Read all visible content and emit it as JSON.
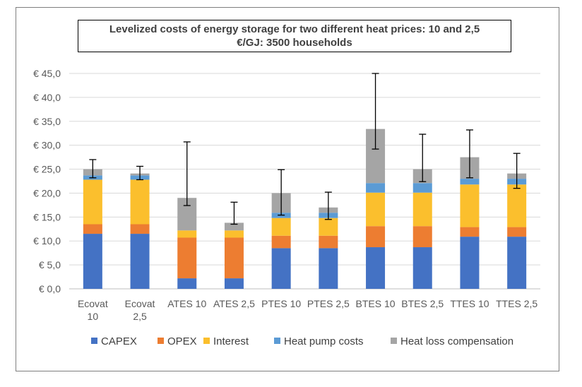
{
  "chart_data": {
    "type": "bar",
    "stacked": true,
    "title_line1": "Levelized costs of energy storage for two different heat prices: 10 and 2,5",
    "title_line2": "€/GJ: 3500 households",
    "categories": [
      [
        "Ecovat",
        "10"
      ],
      [
        "Ecovat",
        "2,5"
      ],
      [
        "ATES 10"
      ],
      [
        "ATES 2,5"
      ],
      [
        "PTES 10"
      ],
      [
        "PTES 2,5"
      ],
      [
        "BTES 10"
      ],
      [
        "BTES 2,5"
      ],
      [
        "TTES 10"
      ],
      [
        "TTES 2,5"
      ]
    ],
    "yticks": [
      "€ 0,0",
      "€ 5,0",
      "€ 10,0",
      "€ 15,0",
      "€ 20,0",
      "€ 25,0",
      "€ 30,0",
      "€ 35,0",
      "€ 40,0",
      "€ 45,0"
    ],
    "ylim": [
      0,
      45
    ],
    "grid": true,
    "legend_position": "bottom",
    "series": [
      {
        "name": "CAPEX",
        "color": "#4472c4",
        "values": [
          11.5,
          11.5,
          2.2,
          2.2,
          8.5,
          8.5,
          8.7,
          8.7,
          10.9,
          10.9
        ]
      },
      {
        "name": "OPEX",
        "color": "#ed7d31",
        "values": [
          2.0,
          2.0,
          8.5,
          8.5,
          2.6,
          2.6,
          4.4,
          4.4,
          2.0,
          2.0
        ]
      },
      {
        "name": "Interest",
        "color": "#fbbf2d",
        "values": [
          9.3,
          9.3,
          1.5,
          1.5,
          3.7,
          3.7,
          7.0,
          7.0,
          8.9,
          8.9
        ]
      },
      {
        "name": "Heat pump costs",
        "color": "#5b9bd5",
        "values": [
          0.9,
          0.9,
          0.0,
          0.0,
          1.1,
          1.1,
          2.0,
          2.0,
          1.2,
          1.2
        ]
      },
      {
        "name": "Heat loss compensation",
        "color": "#a5a5a5",
        "values": [
          1.3,
          0.4,
          6.8,
          1.6,
          4.1,
          1.1,
          11.3,
          2.9,
          4.5,
          1.1
        ]
      }
    ],
    "error_bars": [
      {
        "low": 23.2,
        "high": 27.0
      },
      {
        "low": 22.8,
        "high": 25.6
      },
      {
        "low": 17.4,
        "high": 30.7
      },
      {
        "low": 13.5,
        "high": 18.1
      },
      {
        "low": 15.4,
        "high": 24.9
      },
      {
        "low": 14.5,
        "high": 20.2
      },
      {
        "low": 29.2,
        "high": 45.0
      },
      {
        "low": 22.4,
        "high": 32.3
      },
      {
        "low": 23.2,
        "high": 33.2
      },
      {
        "low": 21.0,
        "high": 28.3
      }
    ]
  }
}
